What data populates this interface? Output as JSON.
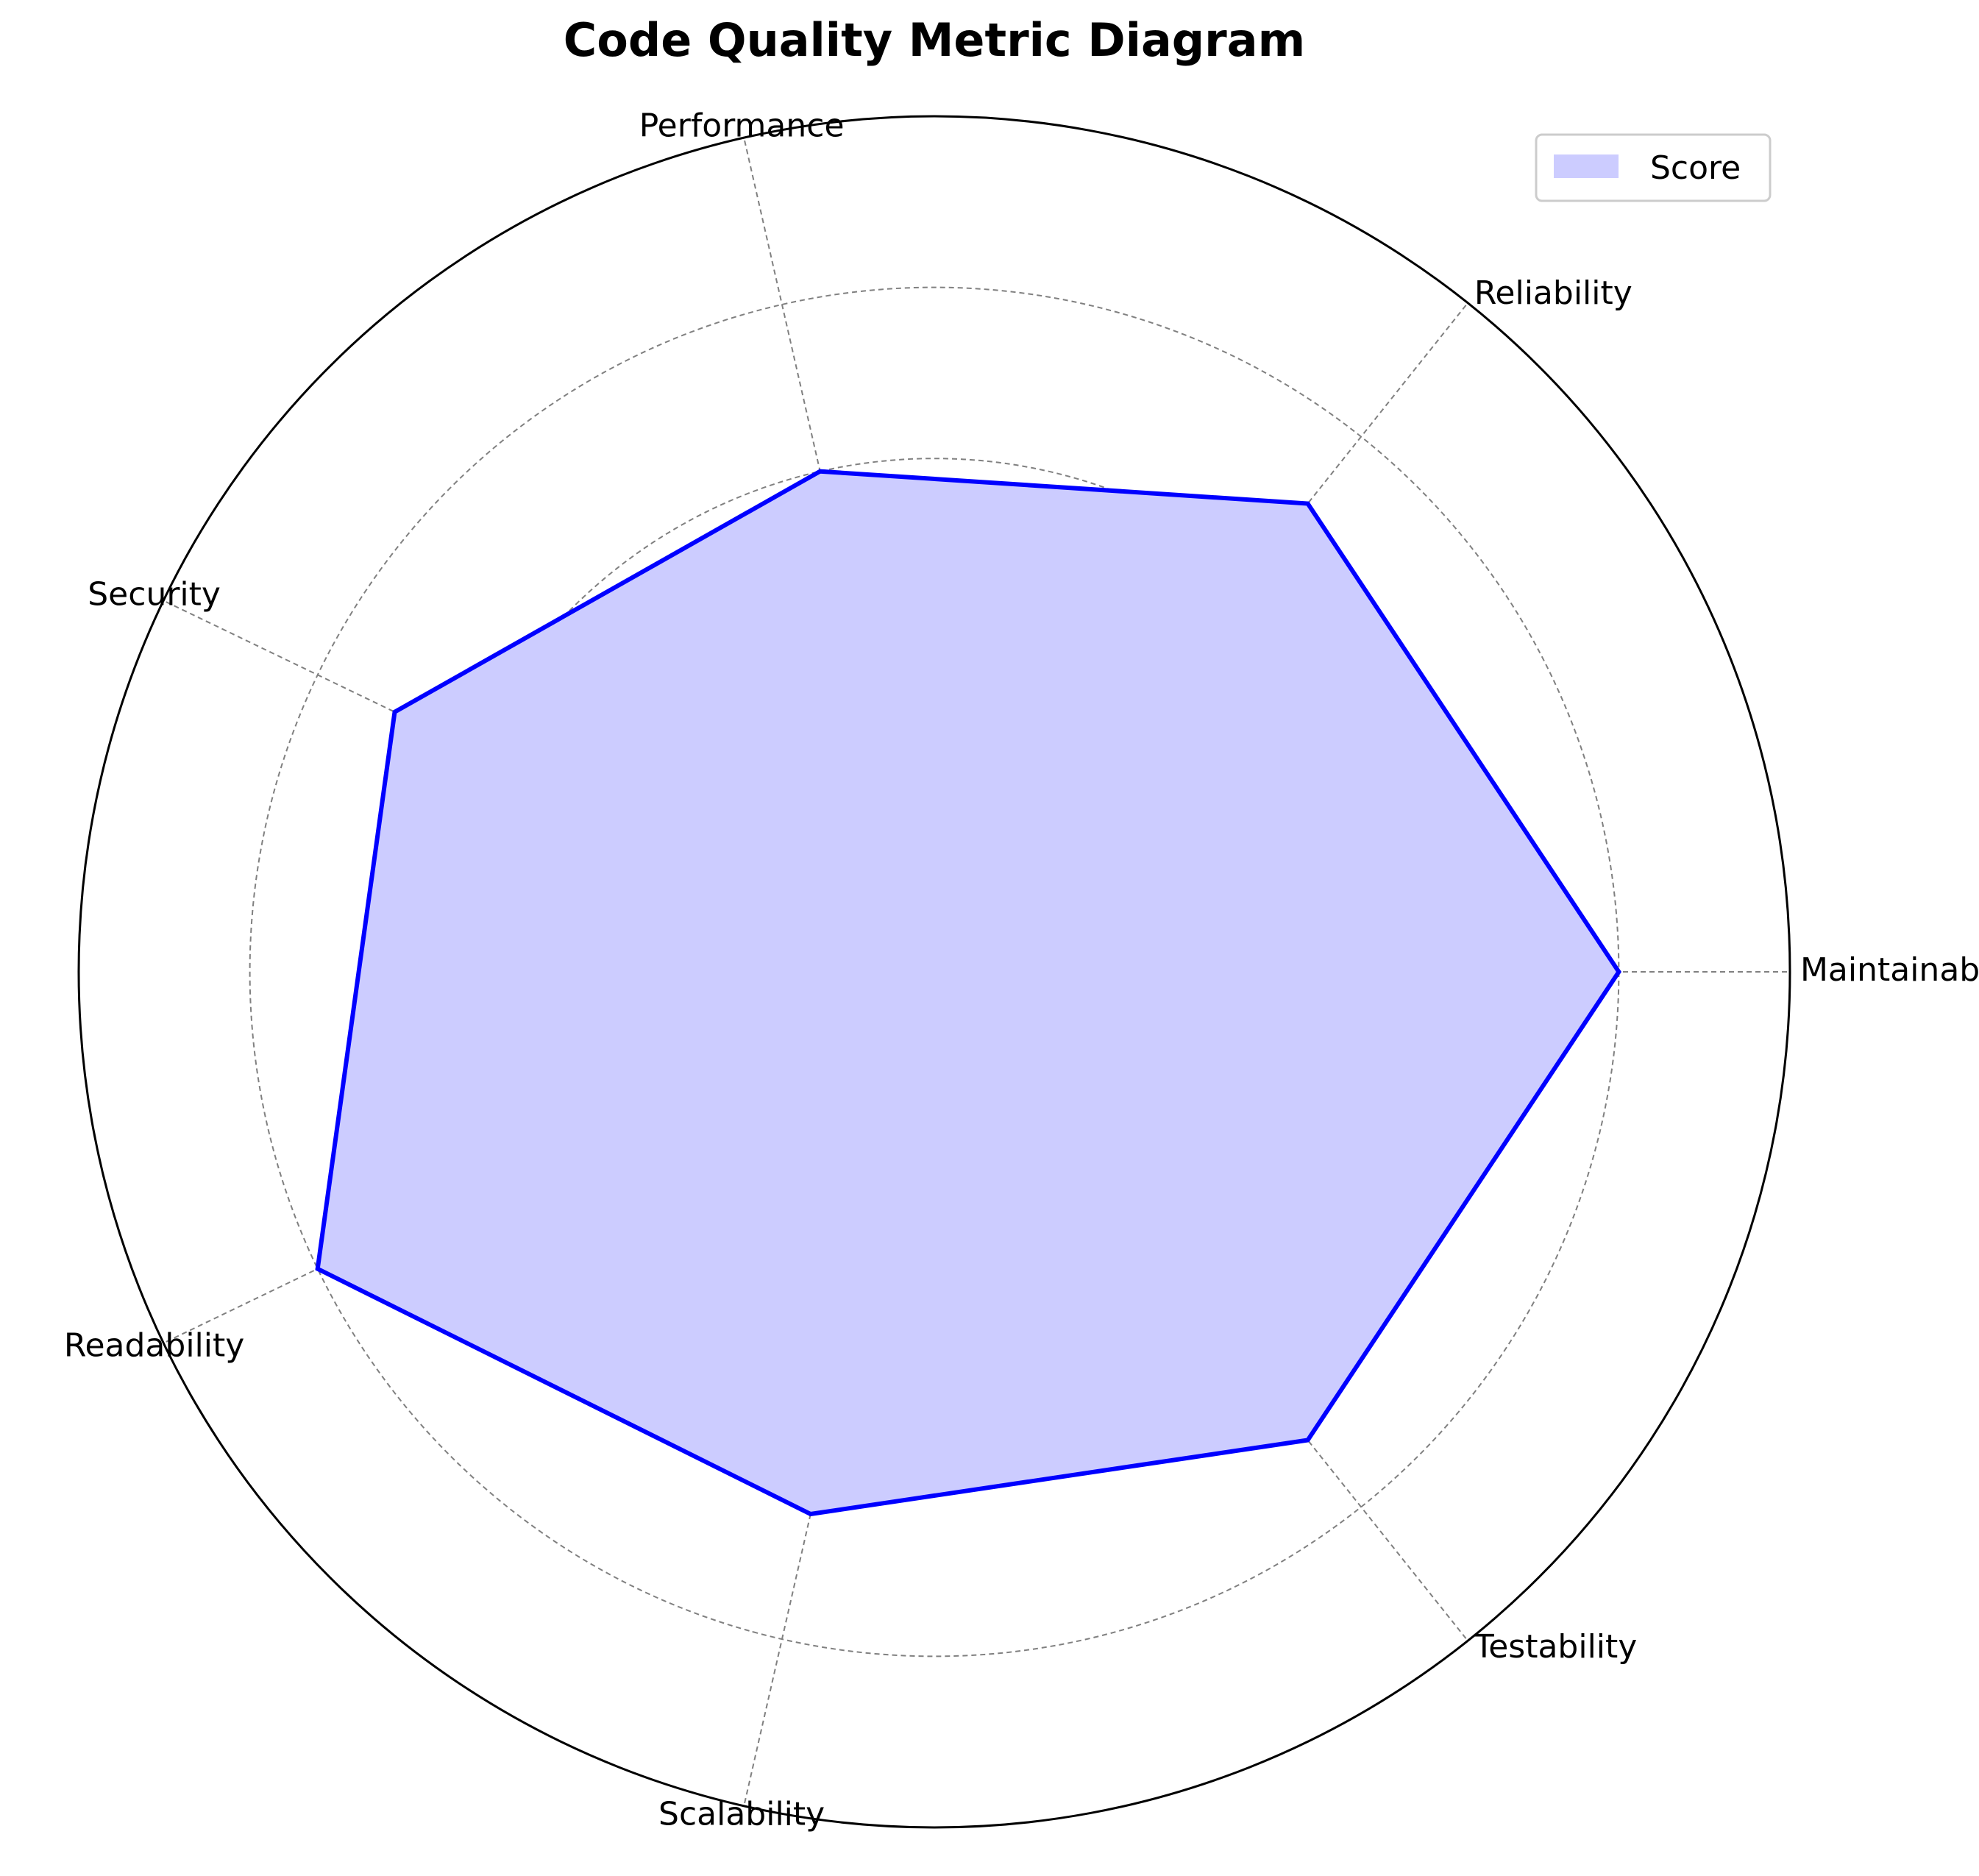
{
  "chart_data": {
    "type": "radar",
    "title": "Code Quality Metric Diagram",
    "categories": [
      "Maintainability",
      "Reliability",
      "Performance",
      "Security",
      "Readability",
      "Scalability",
      "Testability"
    ],
    "series": [
      {
        "name": "Score",
        "values": [
          8,
          7,
          6,
          7,
          8,
          6.5,
          7
        ]
      }
    ],
    "rlim": [
      0,
      10
    ],
    "rgrid": [
      2,
      4,
      6,
      8,
      10
    ],
    "grid": true,
    "grid_style": "dashed",
    "legend_position": "top-right",
    "colors": {
      "line": "#0000ff",
      "fill": "#ccccff",
      "grid": "#808080"
    }
  }
}
